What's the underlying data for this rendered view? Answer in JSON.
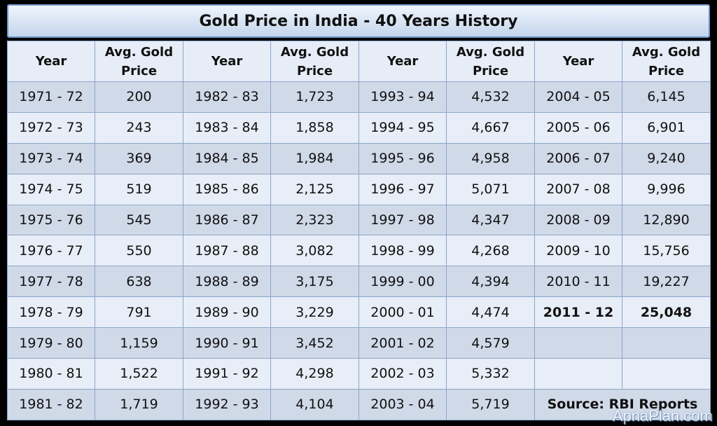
{
  "title": "Gold Price in India - 40 Years History",
  "headers": {
    "year": "Year",
    "price_line1": "Avg. Gold",
    "price_line2": "Price"
  },
  "chart_data": {
    "type": "table",
    "title": "Gold Price in India - 40 Years History",
    "columns": [
      "Year",
      "Avg. Gold Price"
    ],
    "rows": [
      [
        "1971 - 72",
        "200"
      ],
      [
        "1972 - 73",
        "243"
      ],
      [
        "1973 - 74",
        "369"
      ],
      [
        "1974 - 75",
        "519"
      ],
      [
        "1975 - 76",
        "545"
      ],
      [
        "1976 - 77",
        "550"
      ],
      [
        "1977 - 78",
        "638"
      ],
      [
        "1978 - 79",
        "791"
      ],
      [
        "1979 - 80",
        "1,159"
      ],
      [
        "1980 - 81",
        "1,522"
      ],
      [
        "1981 - 82",
        "1,719"
      ],
      [
        "1982 - 83",
        "1,723"
      ],
      [
        "1983 - 84",
        "1,858"
      ],
      [
        "1984 - 85",
        "1,984"
      ],
      [
        "1985 - 86",
        "2,125"
      ],
      [
        "1986 - 87",
        "2,323"
      ],
      [
        "1987 - 88",
        "3,082"
      ],
      [
        "1988 - 89",
        "3,175"
      ],
      [
        "1989 - 90",
        "3,229"
      ],
      [
        "1990 - 91",
        "3,452"
      ],
      [
        "1991 - 92",
        "4,298"
      ],
      [
        "1992 - 93",
        "4,104"
      ],
      [
        "1993 - 94",
        "4,532"
      ],
      [
        "1994 - 95",
        "4,667"
      ],
      [
        "1995 - 96",
        "4,958"
      ],
      [
        "1996 - 97",
        "5,071"
      ],
      [
        "1997 - 98",
        "4,347"
      ],
      [
        "1998 - 99",
        "4,268"
      ],
      [
        "1999 - 00",
        "4,394"
      ],
      [
        "2000 - 01",
        "4,474"
      ],
      [
        "2001 - 02",
        "4,579"
      ],
      [
        "2002 - 03",
        "5,332"
      ],
      [
        "2003 - 04",
        "5,719"
      ],
      [
        "2004 - 05",
        "6,145"
      ],
      [
        "2005 - 06",
        "6,901"
      ],
      [
        "2006 - 07",
        "9,240"
      ],
      [
        "2007 - 08",
        "9,996"
      ],
      [
        "2008 - 09",
        "12,890"
      ],
      [
        "2009 - 10",
        "15,756"
      ],
      [
        "2010 - 11",
        "19,227"
      ],
      [
        "2011 - 12",
        "25,048"
      ]
    ],
    "highlighted_row": "2011 - 12"
  },
  "source": "Source: RBI Reports",
  "watermark": "ApnaPlan.com"
}
